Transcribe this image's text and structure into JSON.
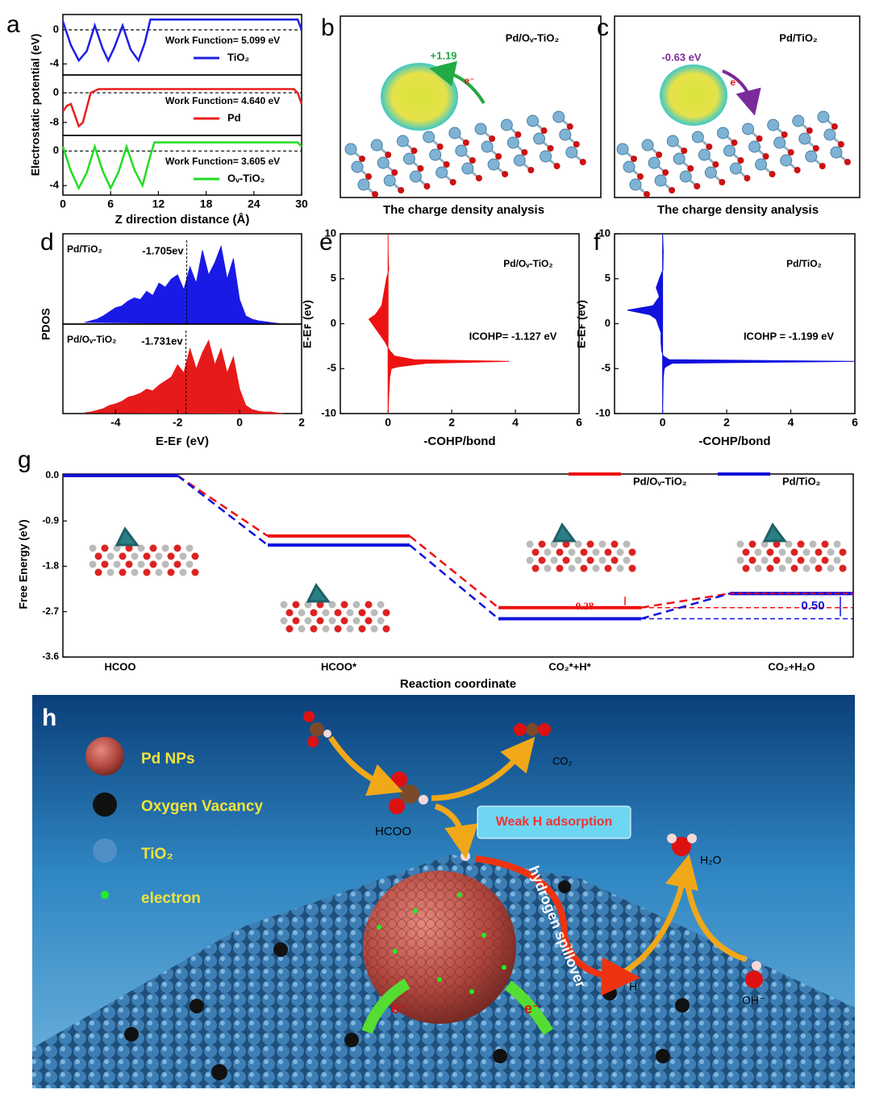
{
  "chart_data": [
    {
      "type": "line",
      "letter": "a",
      "ylabel": "Electrostatic potential (eV)",
      "xlabel": "Z direction distance (Å)",
      "xlim": [
        0,
        30
      ],
      "xticks": [
        0,
        6,
        12,
        18,
        24,
        30
      ],
      "subplots": [
        {
          "ylim": [
            -5.3,
            1.8
          ],
          "yticks": [
            0,
            -4
          ],
          "reference_line": 0,
          "annotation": "Work Function= 5.099 eV",
          "series": [
            {
              "name": "TiO₂",
              "color": "#1e1ee6",
              "x": [
                0,
                1,
                2,
                3,
                4,
                5,
                5.7,
                6.5,
                7.5,
                8.5,
                9.5,
                10.3,
                11,
                12,
                20,
                29.5,
                30
              ],
              "values": [
                1,
                -1.8,
                -3.6,
                -2.5,
                0.5,
                -2.2,
                -3.6,
                -2.0,
                0.5,
                -2.3,
                -3.6,
                -1.5,
                1.2,
                1.2,
                1.2,
                1.2,
                0
              ]
            }
          ]
        },
        {
          "ylim": [
            -11.5,
            4.8
          ],
          "yticks": [
            0,
            -8
          ],
          "reference_line": 0,
          "annotation": "Work Function= 4.640 eV",
          "series": [
            {
              "name": "Pd",
              "color": "#e81e1e",
              "x": [
                0,
                0.5,
                1,
                1.5,
                2,
                2.5,
                3,
                3.5,
                4.5,
                12,
                20,
                29,
                29.5,
                30
              ],
              "values": [
                -5,
                -3.5,
                -3,
                -6,
                -9,
                -8,
                -4,
                0,
                1,
                1,
                1,
                1,
                0,
                -3
              ]
            }
          ]
        },
        {
          "ylim": [
            -5.1,
            1.8
          ],
          "yticks": [
            0,
            -4
          ],
          "reference_line": 0,
          "annotation": "Work Function= 3.605 eV",
          "series": [
            {
              "name": "Oᵥ-TiO₂",
              "color": "#22dd22",
              "x": [
                0,
                1,
                2,
                3,
                4,
                5,
                6,
                7,
                8,
                9,
                10,
                11,
                11.5,
                20,
                29.5,
                30
              ],
              "values": [
                0.5,
                -2.3,
                -4.3,
                -2.5,
                0.5,
                -2.3,
                -4.3,
                -2.4,
                0.5,
                -2.2,
                -4.0,
                -0.5,
                1,
                1,
                1,
                0.5
              ]
            }
          ]
        }
      ]
    },
    {
      "type": "area",
      "letter": "d",
      "ylabel": "PDOS",
      "xlabel": "E-Eꜰ  (eV)",
      "xlim": [
        -5.7,
        2
      ],
      "xticks": [
        -4,
        -2,
        0,
        2
      ],
      "x": [
        -5.0,
        -4.8,
        -4.6,
        -4.4,
        -4.2,
        -4.0,
        -3.8,
        -3.6,
        -3.4,
        -3.2,
        -3.0,
        -2.8,
        -2.6,
        -2.4,
        -2.2,
        -2.0,
        -1.8,
        -1.6,
        -1.4,
        -1.2,
        -1.0,
        -0.8,
        -0.6,
        -0.4,
        -0.2,
        0.0,
        0.2,
        0.4,
        0.6,
        0.8,
        1.0,
        1.2,
        1.4
      ],
      "ylim": [
        0,
        1.1
      ],
      "series": [
        {
          "name": "Pd/TiO₂",
          "color": "#1a1ae6",
          "marker": {
            "value": -1.705,
            "label": "-1.705ev"
          },
          "values": [
            0.02,
            0.04,
            0.06,
            0.1,
            0.15,
            0.2,
            0.22,
            0.28,
            0.32,
            0.3,
            0.4,
            0.35,
            0.5,
            0.45,
            0.55,
            0.6,
            0.42,
            0.7,
            0.5,
            0.9,
            0.6,
            0.75,
            0.95,
            0.55,
            0.8,
            0.3,
            0.1,
            0.06,
            0.04,
            0.03,
            0.02,
            0.01,
            0.0
          ]
        },
        {
          "name": "Pd/Oᵥ-TiO₂",
          "color": "#e61a1a",
          "marker": {
            "value": -1.731,
            "label": "-1.731ev"
          },
          "values": [
            0.01,
            0.02,
            0.04,
            0.06,
            0.1,
            0.12,
            0.15,
            0.2,
            0.22,
            0.25,
            0.3,
            0.28,
            0.35,
            0.4,
            0.45,
            0.6,
            0.5,
            0.8,
            0.55,
            0.75,
            0.9,
            0.6,
            0.8,
            0.5,
            0.7,
            0.3,
            0.1,
            0.05,
            0.03,
            0.02,
            0.02,
            0.01,
            0.0
          ]
        }
      ]
    },
    {
      "type": "profile",
      "letter": "e",
      "title": "Pd/Oᵥ-TiO₂",
      "annotation": "ICOHP= -1.127 eV",
      "color": "#ee1111",
      "xlabel": "-COHP/bond",
      "ylabel": "E-Eꜰ (ev)",
      "xlim": [
        -1.5,
        6
      ],
      "xticks": [
        0,
        2,
        4,
        6
      ],
      "ylim": [
        -10,
        10
      ],
      "yticks": [
        10,
        5,
        0,
        -5,
        -10
      ],
      "y": [
        10,
        8,
        6,
        5,
        4,
        3,
        2,
        1.5,
        1,
        0.5,
        0,
        -0.5,
        -1,
        -2,
        -3,
        -3.6,
        -4,
        -4.2,
        -4.4,
        -4.8,
        -5,
        -6,
        -8,
        -10
      ],
      "values": [
        0,
        0,
        0.02,
        -0.05,
        -0.1,
        -0.15,
        -0.2,
        -0.3,
        -0.4,
        -0.6,
        -0.5,
        -0.4,
        -0.3,
        -0.1,
        0.05,
        0.2,
        0.8,
        3.8,
        1.2,
        0.3,
        0.1,
        0.05,
        0.02,
        0
      ]
    },
    {
      "type": "profile",
      "letter": "f",
      "title": "Pd/TiO₂",
      "annotation": "ICOHP = -1.199 eV",
      "color": "#1111dd",
      "xlabel": "-COHP/bond",
      "ylabel": "E-Eꜰ (ev)",
      "xlim": [
        -1.5,
        6
      ],
      "xticks": [
        0,
        2,
        4,
        6
      ],
      "ylim": [
        -10,
        10
      ],
      "yticks": [
        10,
        5,
        0,
        -5,
        -10
      ],
      "y": [
        10,
        8,
        6,
        5,
        4,
        3,
        2,
        1.5,
        1,
        0.5,
        0,
        -0.5,
        -1,
        -2,
        -3,
        -3.6,
        -4,
        -4.2,
        -4.4,
        -4.8,
        -5,
        -6,
        -8,
        -10
      ],
      "values": [
        0,
        0.02,
        0.01,
        -0.1,
        -0.2,
        -0.1,
        -0.3,
        -1.1,
        -0.4,
        -0.2,
        -0.15,
        -0.1,
        -0.05,
        -0.05,
        -0.03,
        0.02,
        0.2,
        6,
        0.3,
        0.1,
        0.05,
        0.02,
        0.01,
        0
      ]
    },
    {
      "type": "levels",
      "letter": "g",
      "ylabel": "Free Energy (eV)",
      "xlabel": "Reaction coordinate",
      "categories": [
        "HCOO",
        "HCOO*",
        "CO₂*+H*",
        "CO₂+H₂O"
      ],
      "ylim": [
        -3.6,
        0.03
      ],
      "yticks": [
        {
          "value": 0,
          "label": "0.0"
        },
        -0.9,
        -1.8,
        -2.7,
        -3.6
      ],
      "series": [
        {
          "name": "Pd/Oᵥ-TiO₂",
          "color": "#ee1111",
          "values": [
            0,
            -1.2,
            -2.62,
            -2.34
          ]
        },
        {
          "name": "Pd/TiO₂",
          "color": "#1111dd",
          "values": [
            0,
            -1.38,
            -2.84,
            -2.34
          ]
        }
      ],
      "gap_labels": [
        "0.28",
        "0.50"
      ]
    }
  ],
  "structure_panels": {
    "b": {
      "letter": "b",
      "title": "Pd/Oᵥ-TiO₂",
      "charge": "+1.19",
      "electron": "e⁻",
      "caption": "The charge density analysis"
    },
    "c": {
      "letter": "c",
      "title": "Pd/TiO₂",
      "charge": "-0.63 eV",
      "electron": "e⁻",
      "caption": "The charge density analysis"
    },
    "h": {
      "letter": "h",
      "legend": [
        "Pd NPs",
        "Oxygen Vacancy",
        "TiO₂",
        "electron"
      ],
      "labels": {
        "co2": "CO₂",
        "hcoo": "HCOO",
        "weak": "Weak H adsorption",
        "spill": "hydrogen spillover",
        "h2o": "H₂O",
        "h": "H",
        "oh": "OH⁻",
        "e_left": "e⁻",
        "e_right": "e⁻"
      }
    }
  }
}
